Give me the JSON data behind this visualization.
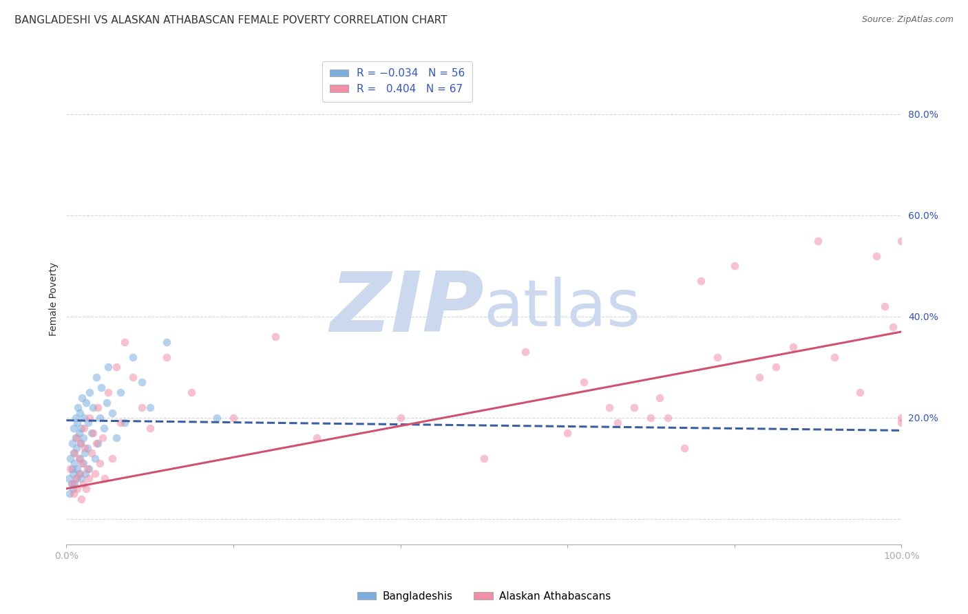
{
  "title": "BANGLADESHI VS ALASKAN ATHABASCAN FEMALE POVERTY CORRELATION CHART",
  "source": "Source: ZipAtlas.com",
  "ylabel": "Female Poverty",
  "xlim": [
    0.0,
    1.0
  ],
  "ylim": [
    -0.05,
    0.92
  ],
  "xticks": [
    0.0,
    0.2,
    0.4,
    0.6,
    0.8,
    1.0
  ],
  "xticklabels": [
    "0.0%",
    "",
    "",
    "",
    "",
    "100.0%"
  ],
  "ytick_positions": [
    0.0,
    0.2,
    0.4,
    0.6,
    0.8
  ],
  "yticklabels": [
    "",
    "20.0%",
    "40.0%",
    "60.0%",
    "80.0%"
  ],
  "bangladeshi_color": "#7baede",
  "alaskan_color": "#f090a8",
  "bangladeshi_line_color": "#3a5fa0",
  "alaskan_line_color": "#d05070",
  "watermark_zip": "ZIP",
  "watermark_atlas": "atlas",
  "watermark_color": "#ccd8ee",
  "background_color": "#ffffff",
  "grid_color": "#d0d8e8",
  "title_fontsize": 11,
  "source_fontsize": 9,
  "axis_label_fontsize": 10,
  "tick_fontsize": 10,
  "legend_fontsize": 11,
  "marker_size": 70,
  "marker_alpha": 0.55,
  "line_width": 2.2,
  "bangladeshi_x": [
    0.003,
    0.004,
    0.005,
    0.006,
    0.007,
    0.007,
    0.008,
    0.008,
    0.009,
    0.009,
    0.01,
    0.01,
    0.011,
    0.011,
    0.012,
    0.012,
    0.013,
    0.013,
    0.014,
    0.015,
    0.015,
    0.016,
    0.016,
    0.017,
    0.018,
    0.018,
    0.019,
    0.02,
    0.02,
    0.021,
    0.022,
    0.023,
    0.024,
    0.025,
    0.026,
    0.027,
    0.028,
    0.03,
    0.032,
    0.034,
    0.036,
    0.038,
    0.04,
    0.042,
    0.045,
    0.048,
    0.05,
    0.055,
    0.06,
    0.065,
    0.07,
    0.08,
    0.09,
    0.1,
    0.12,
    0.18
  ],
  "bangladeshi_y": [
    0.08,
    0.05,
    0.12,
    0.07,
    0.1,
    0.15,
    0.06,
    0.09,
    0.13,
    0.18,
    0.07,
    0.11,
    0.16,
    0.2,
    0.08,
    0.14,
    0.19,
    0.1,
    0.22,
    0.09,
    0.17,
    0.12,
    0.21,
    0.15,
    0.08,
    0.18,
    0.24,
    0.11,
    0.16,
    0.2,
    0.13,
    0.09,
    0.23,
    0.14,
    0.19,
    0.1,
    0.25,
    0.17,
    0.22,
    0.12,
    0.28,
    0.15,
    0.2,
    0.26,
    0.18,
    0.23,
    0.3,
    0.21,
    0.16,
    0.25,
    0.19,
    0.32,
    0.27,
    0.22,
    0.35,
    0.2
  ],
  "alaskan_x": [
    0.005,
    0.007,
    0.009,
    0.01,
    0.011,
    0.012,
    0.013,
    0.015,
    0.016,
    0.017,
    0.018,
    0.019,
    0.02,
    0.021,
    0.022,
    0.024,
    0.025,
    0.027,
    0.028,
    0.03,
    0.032,
    0.034,
    0.036,
    0.038,
    0.04,
    0.043,
    0.046,
    0.05,
    0.055,
    0.06,
    0.065,
    0.07,
    0.08,
    0.09,
    0.1,
    0.12,
    0.15,
    0.2,
    0.25,
    0.3,
    0.4,
    0.5,
    0.55,
    0.6,
    0.62,
    0.65,
    0.66,
    0.68,
    0.7,
    0.71,
    0.72,
    0.74,
    0.76,
    0.78,
    0.8,
    0.83,
    0.85,
    0.87,
    0.9,
    0.92,
    0.95,
    0.97,
    0.98,
    0.99,
    1.0,
    1.0,
    1.0
  ],
  "alaskan_y": [
    0.1,
    0.07,
    0.05,
    0.13,
    0.08,
    0.16,
    0.06,
    0.12,
    0.09,
    0.15,
    0.04,
    0.11,
    0.07,
    0.18,
    0.14,
    0.06,
    0.1,
    0.08,
    0.2,
    0.13,
    0.17,
    0.09,
    0.15,
    0.22,
    0.11,
    0.16,
    0.08,
    0.25,
    0.12,
    0.3,
    0.19,
    0.35,
    0.28,
    0.22,
    0.18,
    0.32,
    0.25,
    0.2,
    0.36,
    0.16,
    0.2,
    0.12,
    0.33,
    0.17,
    0.27,
    0.22,
    0.19,
    0.22,
    0.2,
    0.24,
    0.2,
    0.14,
    0.47,
    0.32,
    0.5,
    0.28,
    0.3,
    0.34,
    0.55,
    0.32,
    0.25,
    0.52,
    0.42,
    0.38,
    0.55,
    0.2,
    0.19
  ]
}
